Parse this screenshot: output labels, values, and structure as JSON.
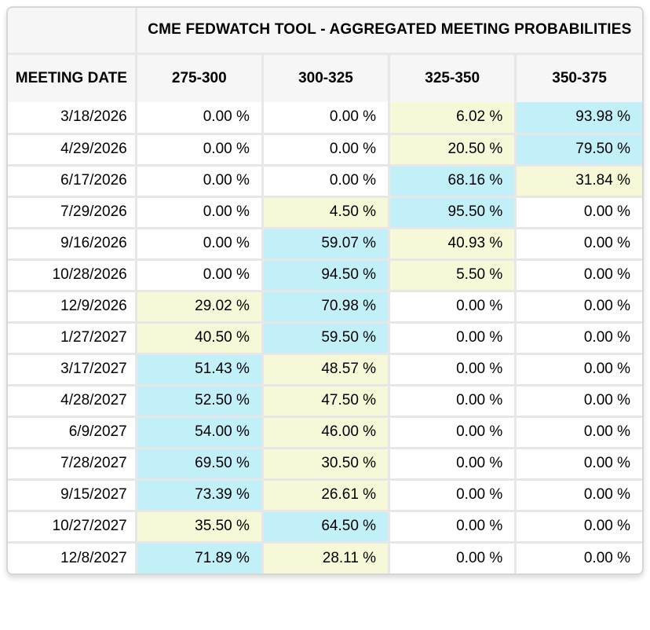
{
  "chart_data": {
    "type": "table",
    "title": "CME FEDWATCH TOOL - AGGREGATED MEETING PROBABILITIES",
    "columns": [
      "MEETING DATE",
      "275-300",
      "300-325",
      "325-350",
      "350-375"
    ],
    "unit": "%",
    "rows": [
      {
        "date": "3/18/2026",
        "values": [
          0.0,
          0.0,
          6.02,
          93.98
        ],
        "highlights": [
          "none",
          "none",
          "yellow",
          "cyan"
        ]
      },
      {
        "date": "4/29/2026",
        "values": [
          0.0,
          0.0,
          20.5,
          79.5
        ],
        "highlights": [
          "none",
          "none",
          "yellow",
          "cyan"
        ]
      },
      {
        "date": "6/17/2026",
        "values": [
          0.0,
          0.0,
          68.16,
          31.84
        ],
        "highlights": [
          "none",
          "none",
          "cyan",
          "yellow"
        ]
      },
      {
        "date": "7/29/2026",
        "values": [
          0.0,
          4.5,
          95.5,
          0.0
        ],
        "highlights": [
          "none",
          "yellow",
          "cyan",
          "none"
        ]
      },
      {
        "date": "9/16/2026",
        "values": [
          0.0,
          59.07,
          40.93,
          0.0
        ],
        "highlights": [
          "none",
          "cyan",
          "yellow",
          "none"
        ]
      },
      {
        "date": "10/28/2026",
        "values": [
          0.0,
          94.5,
          5.5,
          0.0
        ],
        "highlights": [
          "none",
          "cyan",
          "yellow",
          "none"
        ]
      },
      {
        "date": "12/9/2026",
        "values": [
          29.02,
          70.98,
          0.0,
          0.0
        ],
        "highlights": [
          "yellow",
          "cyan",
          "none",
          "none"
        ]
      },
      {
        "date": "1/27/2027",
        "values": [
          40.5,
          59.5,
          0.0,
          0.0
        ],
        "highlights": [
          "yellow",
          "cyan",
          "none",
          "none"
        ]
      },
      {
        "date": "3/17/2027",
        "values": [
          51.43,
          48.57,
          0.0,
          0.0
        ],
        "highlights": [
          "cyan",
          "yellow",
          "none",
          "none"
        ]
      },
      {
        "date": "4/28/2027",
        "values": [
          52.5,
          47.5,
          0.0,
          0.0
        ],
        "highlights": [
          "cyan",
          "yellow",
          "none",
          "none"
        ]
      },
      {
        "date": "6/9/2027",
        "values": [
          54.0,
          46.0,
          0.0,
          0.0
        ],
        "highlights": [
          "cyan",
          "yellow",
          "none",
          "none"
        ]
      },
      {
        "date": "7/28/2027",
        "values": [
          69.5,
          30.5,
          0.0,
          0.0
        ],
        "highlights": [
          "cyan",
          "yellow",
          "none",
          "none"
        ]
      },
      {
        "date": "9/15/2027",
        "values": [
          73.39,
          26.61,
          0.0,
          0.0
        ],
        "highlights": [
          "cyan",
          "yellow",
          "none",
          "none"
        ]
      },
      {
        "date": "10/27/2027",
        "values": [
          35.5,
          64.5,
          0.0,
          0.0
        ],
        "highlights": [
          "yellow",
          "cyan",
          "none",
          "none"
        ]
      },
      {
        "date": "12/8/2027",
        "values": [
          71.89,
          28.11,
          0.0,
          0.0
        ],
        "highlights": [
          "cyan",
          "yellow",
          "none",
          "none"
        ]
      }
    ]
  },
  "colors": {
    "cyan": "#c2f0f9",
    "yellow": "#f7f8d7",
    "header_bg": "#f6f6f6",
    "border": "#e7e7e7",
    "outer_border": "#d6d6d6",
    "text": "#000000",
    "cell_bg": "#ffffff"
  },
  "value_suffix": " %"
}
